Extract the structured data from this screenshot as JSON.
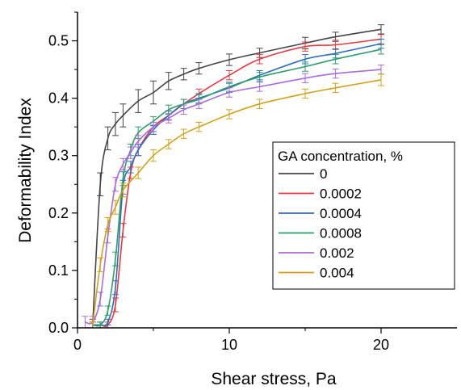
{
  "chart_data": {
    "type": "line",
    "xlabel": "Shear stress, Pa",
    "ylabel": "Deformability Index",
    "xlim": [
      0,
      25
    ],
    "ylim": [
      0,
      0.55
    ],
    "x_ticks": [
      0,
      10,
      20
    ],
    "y_ticks": [
      0.0,
      0.1,
      0.2,
      0.3,
      0.4,
      0.5
    ],
    "x_tick_labels": [
      "0",
      "10",
      "20"
    ],
    "y_tick_labels": [
      "0.0",
      "0.1",
      "0.2",
      "0.3",
      "0.4",
      "0.5"
    ],
    "grid": false,
    "error_bars": true,
    "legend": {
      "title": "GA concentration, %",
      "position": "center-right"
    },
    "series": [
      {
        "name": "0",
        "color": "#444444",
        "x": [
          1.0,
          1.5,
          2.0,
          2.5,
          3.0,
          4.0,
          5.0,
          6.0,
          7.0,
          8.0,
          10.0,
          12.0,
          15.0,
          17.0,
          20.0
        ],
        "y": [
          0.005,
          0.25,
          0.33,
          0.355,
          0.37,
          0.395,
          0.41,
          0.43,
          0.442,
          0.452,
          0.467,
          0.479,
          0.496,
          0.507,
          0.52
        ],
        "err": [
          0.01,
          0.02,
          0.02,
          0.02,
          0.02,
          0.02,
          0.02,
          0.015,
          0.01,
          0.01,
          0.01,
          0.008,
          0.01,
          0.008,
          0.008
        ]
      },
      {
        "name": "0.0002",
        "color": "#e8383d",
        "x": [
          1.0,
          1.5,
          2.0,
          2.5,
          3.0,
          3.5,
          4.0,
          5.0,
          6.0,
          7.0,
          8.0,
          10.0,
          12.0,
          15.0,
          17.0,
          20.0
        ],
        "y": [
          0.005,
          0.005,
          0.005,
          0.04,
          0.17,
          0.27,
          0.31,
          0.35,
          0.37,
          0.39,
          0.408,
          0.44,
          0.468,
          0.49,
          0.493,
          0.503
        ],
        "err": [
          0.005,
          0.005,
          0.005,
          0.012,
          0.012,
          0.01,
          0.01,
          0.008,
          0.008,
          0.008,
          0.008,
          0.008,
          0.008,
          0.008,
          0.008,
          0.008
        ]
      },
      {
        "name": "0.0004",
        "color": "#2e6dc4",
        "x": [
          1.0,
          1.5,
          2.0,
          2.5,
          3.0,
          3.5,
          4.0,
          5.0,
          6.0,
          7.0,
          8.0,
          10.0,
          12.0,
          15.0,
          17.0,
          20.0
        ],
        "y": [
          0.005,
          0.005,
          0.01,
          0.07,
          0.245,
          0.28,
          0.31,
          0.345,
          0.37,
          0.39,
          0.4,
          0.418,
          0.44,
          0.468,
          0.478,
          0.495
        ],
        "err": [
          0.005,
          0.005,
          0.005,
          0.012,
          0.012,
          0.01,
          0.01,
          0.008,
          0.008,
          0.008,
          0.008,
          0.008,
          0.008,
          0.008,
          0.008,
          0.008
        ]
      },
      {
        "name": "0.0008",
        "color": "#2e9e6a",
        "x": [
          1.0,
          1.5,
          2.0,
          2.5,
          3.0,
          3.5,
          4.0,
          5.0,
          6.0,
          7.0,
          8.0,
          10.0,
          12.0,
          15.0,
          17.0,
          20.0
        ],
        "y": [
          0.005,
          0.005,
          0.03,
          0.12,
          0.26,
          0.31,
          0.34,
          0.36,
          0.38,
          0.39,
          0.398,
          0.42,
          0.437,
          0.455,
          0.468,
          0.485
        ],
        "err": [
          0.005,
          0.005,
          0.008,
          0.012,
          0.012,
          0.01,
          0.01,
          0.008,
          0.008,
          0.008,
          0.008,
          0.008,
          0.008,
          0.008,
          0.008,
          0.008
        ]
      },
      {
        "name": "0.002",
        "color": "#a86ae0",
        "x": [
          0.5,
          1.0,
          1.5,
          2.0,
          2.5,
          3.0,
          3.5,
          4.0,
          5.0,
          6.0,
          7.0,
          8.0,
          10.0,
          12.0,
          15.0,
          17.0,
          20.0
        ],
        "y": [
          0.01,
          0.01,
          0.05,
          0.16,
          0.25,
          0.285,
          0.305,
          0.325,
          0.35,
          0.365,
          0.38,
          0.39,
          0.41,
          0.42,
          0.435,
          0.443,
          0.45
        ],
        "err": [
          0.01,
          0.01,
          0.012,
          0.012,
          0.012,
          0.01,
          0.01,
          0.01,
          0.008,
          0.008,
          0.008,
          0.008,
          0.008,
          0.008,
          0.008,
          0.008,
          0.008
        ]
      },
      {
        "name": "0.004",
        "color": "#d4a017",
        "x": [
          1.0,
          1.5,
          2.0,
          2.5,
          3.0,
          4.0,
          5.0,
          6.0,
          7.0,
          8.0,
          10.0,
          12.0,
          15.0,
          17.0,
          20.0
        ],
        "y": [
          0.005,
          0.11,
          0.18,
          0.21,
          0.24,
          0.27,
          0.3,
          0.32,
          0.338,
          0.35,
          0.372,
          0.39,
          0.408,
          0.418,
          0.432
        ],
        "err": [
          0.005,
          0.012,
          0.012,
          0.012,
          0.012,
          0.01,
          0.01,
          0.008,
          0.008,
          0.008,
          0.008,
          0.008,
          0.008,
          0.008,
          0.01
        ]
      }
    ]
  }
}
